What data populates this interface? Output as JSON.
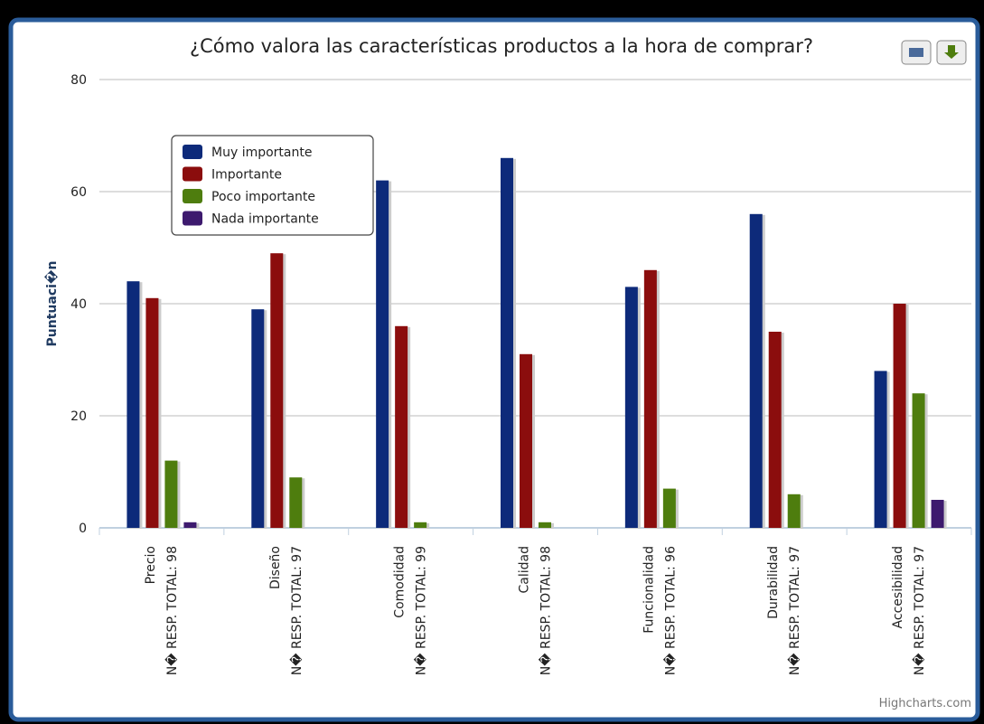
{
  "chart_data": {
    "type": "bar",
    "title": "¿Cómo valora las características productos a la hora de comprar?",
    "y_label": "Puntuaci�n",
    "credits": "Highcharts.com",
    "categories": [
      [
        "Precio",
        "N� RESP. TOTAL: 98"
      ],
      [
        "Diseño",
        "N� RESP. TOTAL: 97"
      ],
      [
        "Comodidad",
        "N� RESP. TOTAL: 99"
      ],
      [
        "Calidad",
        "N� RESP. TOTAL: 98"
      ],
      [
        "Funcionalidad",
        "N� RESP. TOTAL: 96"
      ],
      [
        "Durabilidad",
        "N� RESP. TOTAL: 97"
      ],
      [
        "Accesibilidad",
        "N� RESP. TOTAL: 97"
      ]
    ],
    "series": [
      {
        "name": "Muy importante",
        "color": "#0d2a7a",
        "values": [
          44,
          39,
          62,
          66,
          43,
          56,
          28
        ]
      },
      {
        "name": "Importante",
        "color": "#8b0d0d",
        "values": [
          41,
          49,
          36,
          31,
          46,
          35,
          40
        ]
      },
      {
        "name": "Poco importante",
        "color": "#4e7d0e",
        "values": [
          12,
          9,
          1,
          1,
          7,
          6,
          24
        ]
      },
      {
        "name": "Nada importante",
        "color": "#3d1a6e",
        "values": [
          1,
          0,
          0,
          0,
          0,
          0,
          5
        ]
      }
    ],
    "ylim": [
      0,
      80
    ],
    "yticks": [
      0,
      20,
      40,
      60,
      80
    ],
    "grid": true,
    "legend": "upper left"
  }
}
